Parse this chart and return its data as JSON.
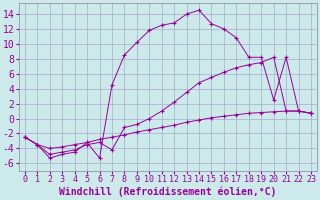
{
  "background_color": "#cceaea",
  "grid_color": "#aaaacc",
  "line_color": "#990099",
  "xlabel": "Windchill (Refroidissement éolien,°C)",
  "xlabel_fontsize": 7,
  "ytick_fontsize": 7,
  "xtick_fontsize": 6,
  "xlim": [
    -0.5,
    23.5
  ],
  "ylim": [
    -7,
    15.5
  ],
  "yticks": [
    -6,
    -4,
    -2,
    0,
    2,
    4,
    6,
    8,
    10,
    12,
    14
  ],
  "xticks": [
    0,
    1,
    2,
    3,
    4,
    5,
    6,
    7,
    8,
    9,
    10,
    11,
    12,
    13,
    14,
    15,
    16,
    17,
    18,
    19,
    20,
    21,
    22,
    23
  ],
  "line1_x": [
    0,
    1,
    2,
    3,
    4,
    5,
    6,
    7,
    8,
    9,
    10,
    11,
    12,
    13,
    14,
    15,
    16,
    17,
    18,
    19,
    20,
    21,
    22,
    23
  ],
  "line1_y": [
    -2.5,
    -3.5,
    -5.3,
    -4.8,
    -4.5,
    -3.2,
    -5.3,
    4.5,
    8.5,
    10.2,
    11.8,
    12.5,
    12.8,
    14.0,
    14.5,
    12.7,
    12.0,
    10.8,
    8.2,
    8.2,
    2.5,
    8.2,
    1.0,
    0.7
  ],
  "line2_x": [
    0,
    1,
    2,
    3,
    4,
    5,
    6,
    7,
    8,
    9,
    10,
    11,
    12,
    13,
    14,
    15,
    16,
    17,
    18,
    19,
    20,
    21,
    22,
    23
  ],
  "line2_y": [
    -2.5,
    -3.5,
    -4.8,
    -4.5,
    -4.2,
    -3.5,
    -3.2,
    -4.2,
    -1.2,
    -0.8,
    0.0,
    1.0,
    2.2,
    3.5,
    4.8,
    5.5,
    6.2,
    6.8,
    7.2,
    7.5,
    8.2,
    1.0,
    1.0,
    0.7
  ],
  "line3_x": [
    0,
    1,
    2,
    3,
    4,
    5,
    6,
    7,
    8,
    9,
    10,
    11,
    12,
    13,
    14,
    15,
    16,
    17,
    18,
    19,
    20,
    21,
    22,
    23
  ],
  "line3_y": [
    -2.5,
    -3.5,
    -4.0,
    -3.8,
    -3.5,
    -3.2,
    -2.8,
    -2.5,
    -2.2,
    -1.8,
    -1.5,
    -1.2,
    -0.9,
    -0.5,
    -0.2,
    0.1,
    0.3,
    0.5,
    0.7,
    0.8,
    0.9,
    1.0,
    1.0,
    0.7
  ]
}
